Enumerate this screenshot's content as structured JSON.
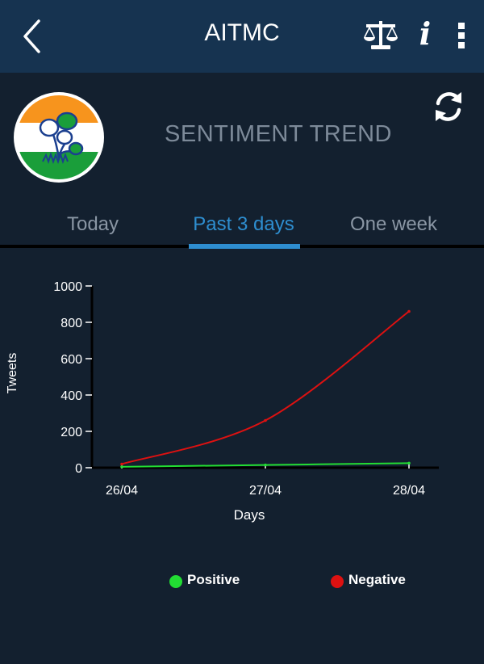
{
  "header": {
    "title": "AITMC"
  },
  "icons": {
    "back": "back-chevron-icon",
    "compare": "scale-icon",
    "info": "info-icon",
    "menu": "more-vertical-icon",
    "refresh": "refresh-icon",
    "logo": "party-logo"
  },
  "info_glyph": "i",
  "section_title": "SENTIMENT TREND",
  "tabs": [
    {
      "label": "Today",
      "active": false
    },
    {
      "label": "Past 3 days",
      "active": true
    },
    {
      "label": "One week",
      "active": false
    }
  ],
  "colors": {
    "header_bg": "#163350",
    "background": "#13202f",
    "accent": "#2e8ed0",
    "positive": "#22dd33",
    "negative": "#dd1111"
  },
  "chart_data": {
    "type": "line",
    "x": [
      "26/04",
      "27/04",
      "28/04"
    ],
    "series": [
      {
        "name": "Positive",
        "values": [
          5,
          15,
          25
        ]
      },
      {
        "name": "Negative",
        "values": [
          20,
          260,
          860
        ]
      }
    ],
    "xlabel": "Days",
    "ylabel": "Tweets",
    "ylim": [
      0,
      1000
    ],
    "yticks": [
      0,
      200,
      400,
      600,
      800,
      1000
    ],
    "legend_position": "bottom"
  }
}
